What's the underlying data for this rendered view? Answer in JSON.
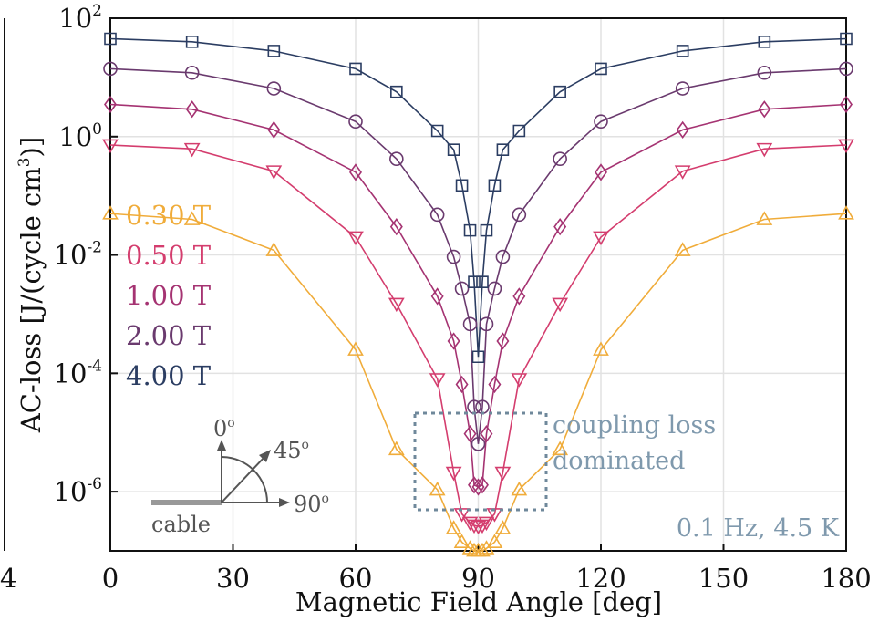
{
  "chart_data": {
    "type": "line",
    "xlabel": "Magnetic Field Angle [deg]",
    "ylabel_parts": [
      "AC-loss [J/(cycle cm",
      "3",
      ")]"
    ],
    "xlim": [
      0,
      180
    ],
    "ylim_exp": [
      -7,
      2
    ],
    "yscale": "log",
    "grid": true,
    "x_ticks": [
      "0",
      "30",
      "60",
      "90",
      "120",
      "150",
      "180"
    ],
    "y_ticks": [
      {
        "base": "10",
        "exp": "-6"
      },
      {
        "base": "10",
        "exp": "-4"
      },
      {
        "base": "10",
        "exp": "-2"
      },
      {
        "base": "10",
        "exp": "0"
      },
      {
        "base": "10",
        "exp": "2"
      }
    ],
    "left_edge_tick": "4",
    "x": [
      0,
      20,
      40,
      60,
      70,
      80,
      84,
      86,
      88,
      89,
      90,
      91,
      92,
      94,
      96,
      100,
      110,
      120,
      140,
      160,
      180
    ],
    "series": [
      {
        "name": "0.30 T",
        "color": "#f0ac3a",
        "marker": "triangle-up",
        "values": [
          0.05,
          0.04,
          0.012,
          0.00025,
          5.2e-06,
          1.08e-06,
          2.4e-07,
          1.4e-07,
          1.1e-07,
          1e-07,
          1e-07,
          1e-07,
          1.1e-07,
          1.4e-07,
          2.4e-07,
          1.08e-06,
          5.2e-06,
          0.00025,
          0.012,
          0.04,
          0.05
        ]
      },
      {
        "name": "0.50 T",
        "color": "#d43d6e",
        "marker": "triangle-down",
        "values": [
          0.72,
          0.62,
          0.26,
          0.02,
          0.0015,
          8e-05,
          2.1e-06,
          4.2e-07,
          3e-07,
          2.7e-07,
          2.6e-07,
          2.7e-07,
          3e-07,
          4.2e-07,
          2.1e-06,
          8e-05,
          0.0015,
          0.02,
          0.26,
          0.62,
          0.72
        ]
      },
      {
        "name": "1.00 T",
        "color": "#a53372",
        "marker": "diamond",
        "values": [
          3.5,
          2.9,
          1.3,
          0.25,
          0.03,
          0.002,
          0.00035,
          6.5e-05,
          9.5e-06,
          1.3e-06,
          1.2e-06,
          1.3e-06,
          9.5e-06,
          6.5e-05,
          0.00035,
          0.002,
          0.03,
          0.25,
          1.3,
          2.9,
          3.5
        ]
      },
      {
        "name": "2.00 T",
        "color": "#6a3a6e",
        "marker": "circle",
        "values": [
          14,
          12,
          6.5,
          1.8,
          0.42,
          0.048,
          0.0093,
          0.0027,
          0.00068,
          2.7e-05,
          6.4e-06,
          2.7e-05,
          0.00068,
          0.0027,
          0.0093,
          0.048,
          0.42,
          1.8,
          6.5,
          12,
          14
        ]
      },
      {
        "name": "4.00 T",
        "color": "#2b3d62",
        "marker": "square",
        "values": [
          45,
          40,
          28,
          14,
          5.7,
          1.25,
          0.6,
          0.15,
          0.026,
          0.0035,
          0.00019,
          0.0035,
          0.026,
          0.15,
          0.6,
          1.25,
          5.7,
          14,
          28,
          40,
          45
        ]
      }
    ],
    "annotation_box_label": [
      "coupling loss",
      "dominated"
    ],
    "condition_label": "0.1 Hz, 4.5 K",
    "inset": {
      "labels": [
        "0",
        "45",
        "90"
      ],
      "degree_symbol": "o",
      "cable_label": "cable"
    }
  }
}
